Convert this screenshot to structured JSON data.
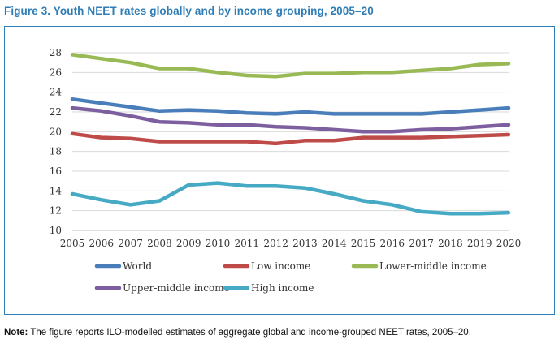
{
  "figure_title": "Figure 3. Youth NEET rates globally and by income grouping, 2005–20",
  "note": {
    "label": "Note:",
    "text": " The figure reports ILO-modelled estimates of aggregate global and income-grouped NEET rates, 2005–20."
  },
  "chart_data": {
    "type": "line",
    "title": "Figure 3. Youth NEET rates globally and by income grouping, 2005–20",
    "xlabel": "",
    "ylabel": "",
    "x": [
      2005,
      2006,
      2007,
      2008,
      2009,
      2010,
      2011,
      2012,
      2013,
      2014,
      2015,
      2016,
      2017,
      2018,
      2019,
      2020
    ],
    "ylim": [
      10,
      28
    ],
    "yticks": [
      10,
      12,
      14,
      16,
      18,
      20,
      22,
      24,
      26,
      28
    ],
    "grid": "horizontal",
    "legend_position": "bottom",
    "series": [
      {
        "name": "World",
        "color": "#4a7ebb",
        "values": [
          23.3,
          22.9,
          22.5,
          22.1,
          22.2,
          22.1,
          21.9,
          21.8,
          22.0,
          21.8,
          21.8,
          21.8,
          21.8,
          22.0,
          22.2,
          22.4
        ]
      },
      {
        "name": "Low income",
        "color": "#be4b48",
        "values": [
          19.8,
          19.4,
          19.3,
          19.0,
          19.0,
          19.0,
          19.0,
          18.8,
          19.1,
          19.1,
          19.4,
          19.4,
          19.4,
          19.5,
          19.6,
          19.7
        ]
      },
      {
        "name": "Lower-middle income",
        "color": "#98b954",
        "values": [
          27.8,
          27.4,
          27.0,
          26.4,
          26.4,
          26.0,
          25.7,
          25.6,
          25.9,
          25.9,
          26.0,
          26.0,
          26.2,
          26.4,
          26.8,
          26.9
        ]
      },
      {
        "name": "Upper-middle income",
        "color": "#7d5fa0",
        "values": [
          22.4,
          22.1,
          21.6,
          21.0,
          20.9,
          20.7,
          20.7,
          20.5,
          20.4,
          20.2,
          20.0,
          20.0,
          20.2,
          20.3,
          20.5,
          20.7
        ]
      },
      {
        "name": "High income",
        "color": "#46aac5",
        "values": [
          13.7,
          13.1,
          12.6,
          13.0,
          14.6,
          14.8,
          14.5,
          14.5,
          14.3,
          13.7,
          13.0,
          12.6,
          11.9,
          11.7,
          11.7,
          11.8
        ]
      }
    ]
  }
}
